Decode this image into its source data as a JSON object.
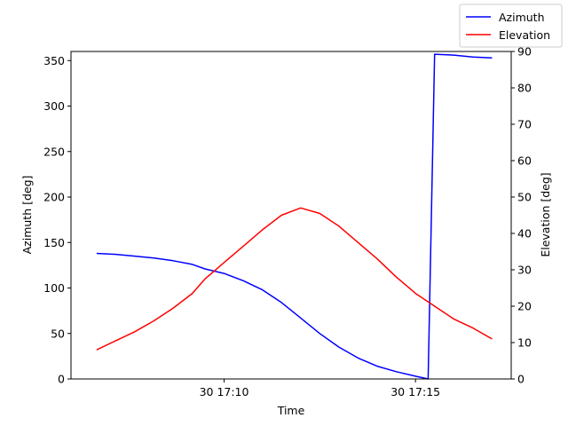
{
  "chart_data": {
    "type": "line",
    "xlabel": "Time",
    "ylabel_left": "Azimuth [deg]",
    "ylabel_right": "Elevation [deg]",
    "x_ticks": [
      "30 17:10",
      "30 17:15"
    ],
    "x_tick_minutes": [
      10,
      15
    ],
    "xlim_minutes": [
      6.0,
      17.5
    ],
    "ylim_left": [
      0,
      360
    ],
    "ylim_right": [
      0,
      90
    ],
    "yticks_left": [
      0,
      50,
      100,
      150,
      200,
      250,
      300,
      350
    ],
    "yticks_right": [
      0,
      10,
      20,
      30,
      40,
      50,
      60,
      70,
      80,
      90
    ],
    "x_minutes": [
      6.67,
      7.17,
      7.67,
      8.17,
      8.67,
      9.17,
      9.5,
      10.0,
      10.5,
      11.0,
      11.5,
      12.0,
      12.5,
      13.0,
      13.5,
      14.0,
      14.5,
      15.0,
      15.5,
      16.0,
      16.5,
      17.0
    ],
    "series": [
      {
        "name": "Azimuth",
        "axis": "left",
        "color": "#0000ff",
        "x_minutes": [
          6.67,
          7.17,
          7.67,
          8.17,
          8.67,
          9.17,
          9.5,
          10.0,
          10.5,
          11.0,
          11.5,
          12.0,
          12.5,
          13.0,
          13.5,
          14.0,
          14.5,
          15.0,
          15.33,
          15.5,
          16.0,
          16.5,
          17.0
        ],
        "values": [
          138,
          137,
          135,
          133,
          130,
          126,
          121,
          116,
          108,
          98,
          84,
          67,
          50,
          35,
          23,
          14,
          8,
          3,
          0,
          357,
          356,
          354,
          353
        ]
      },
      {
        "name": "Elevation",
        "axis": "right",
        "color": "#ff0000",
        "x_minutes": [
          6.67,
          7.17,
          7.67,
          8.17,
          8.67,
          9.17,
          9.5,
          10.0,
          10.5,
          11.0,
          11.5,
          12.0,
          12.5,
          13.0,
          13.5,
          14.0,
          14.5,
          15.0,
          15.5,
          16.0,
          16.5,
          17.0
        ],
        "values": [
          8,
          10.5,
          13,
          16,
          19.5,
          23.5,
          27.5,
          32,
          36.5,
          41,
          45,
          47,
          45.5,
          42,
          37.5,
          33,
          28,
          23.5,
          20,
          16.5,
          14,
          11
        ]
      }
    ],
    "legend": [
      "Azimuth",
      "Elevation"
    ],
    "legend_position": "top-right",
    "grid": false
  }
}
